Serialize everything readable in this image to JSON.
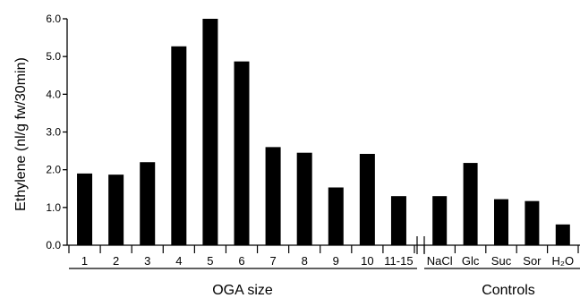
{
  "chart_data": {
    "type": "bar",
    "ylabel": "Ethylene (nl/g fw/30min)",
    "ylim": [
      0,
      6.0
    ],
    "y_ticks": [
      "0.0",
      "1.0",
      "2.0",
      "3.0",
      "4.0",
      "5.0",
      "6.0"
    ],
    "groups": [
      {
        "name": "OGA size",
        "categories": [
          "1",
          "2",
          "3",
          "4",
          "5",
          "6",
          "7",
          "8",
          "9",
          "10",
          "11-15"
        ],
        "values": [
          1.9,
          1.87,
          2.2,
          5.27,
          6.0,
          4.87,
          2.6,
          2.45,
          1.53,
          2.42,
          1.3
        ]
      },
      {
        "name": "Controls",
        "categories": [
          "NaCl",
          "Glc",
          "Suc",
          "Sor",
          "H₂O"
        ],
        "values": [
          1.3,
          2.18,
          1.22,
          1.17,
          0.55
        ]
      }
    ],
    "bar_color": "#000000",
    "grid": false,
    "legend": "none"
  }
}
